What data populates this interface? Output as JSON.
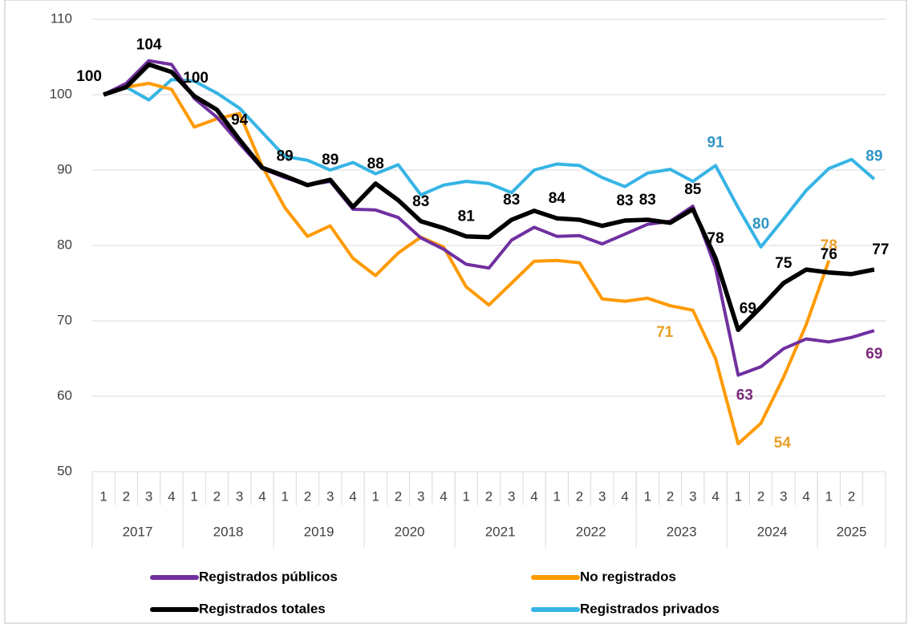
{
  "chart_data": {
    "type": "line",
    "categories": [
      "1",
      "2",
      "3",
      "4",
      "1",
      "2",
      "3",
      "4",
      "1",
      "2",
      "3",
      "4",
      "1",
      "2",
      "3",
      "4",
      "1",
      "2",
      "3",
      "4",
      "1",
      "2",
      "3",
      "4",
      "1",
      "2",
      "3",
      "4",
      "1",
      "2",
      "3",
      "4",
      "1",
      "2",
      null
    ],
    "years": [
      {
        "label": "2017",
        "span": 4
      },
      {
        "label": "2018",
        "span": 4
      },
      {
        "label": "2019",
        "span": 4
      },
      {
        "label": "2020",
        "span": 4
      },
      {
        "label": "2021",
        "span": 4
      },
      {
        "label": "2022",
        "span": 4
      },
      {
        "label": "2023",
        "span": 4
      },
      {
        "label": "2024",
        "span": 4
      },
      {
        "label": "2025",
        "span": 3
      }
    ],
    "ylim": [
      50,
      110
    ],
    "yticks": [
      50,
      60,
      70,
      80,
      90,
      100,
      110
    ],
    "grid": true,
    "series": [
      {
        "name": "Registrados públicos",
        "color": "#7030a0",
        "label_color": "#7b2a7b",
        "values": [
          100,
          101.5,
          104.5,
          104,
          99.5,
          97,
          93.5,
          90.2,
          89,
          88,
          88.5,
          84.8,
          84.7,
          83.7,
          81,
          79.5,
          77.5,
          77,
          80.7,
          82.4,
          81.2,
          81.3,
          80.2,
          81.5,
          82.8,
          83.2,
          85.2,
          77,
          62.8,
          63.9,
          66.3,
          67.6,
          67.2,
          67.8,
          68.7
        ],
        "value_labels": [
          null,
          null,
          null,
          null,
          null,
          null,
          null,
          null,
          null,
          null,
          null,
          null,
          null,
          null,
          null,
          null,
          null,
          null,
          null,
          null,
          null,
          null,
          null,
          null,
          null,
          null,
          null,
          null,
          "63",
          null,
          null,
          null,
          null,
          null,
          "69"
        ]
      },
      {
        "name": "No registrados",
        "color": "#ff9a00",
        "label_color": "#e8a02a",
        "values": [
          100,
          101,
          101.5,
          100.7,
          95.7,
          96.8,
          97.5,
          90.5,
          85,
          81.2,
          82.6,
          78.3,
          76,
          79,
          81.1,
          79.8,
          74.5,
          72.1,
          75,
          77.9,
          78,
          77.7,
          72.9,
          72.6,
          73,
          72,
          71.4,
          65,
          53.7,
          56.4,
          62.5,
          69.5,
          78,
          null,
          null
        ],
        "value_labels": [
          null,
          null,
          null,
          null,
          null,
          null,
          null,
          null,
          null,
          null,
          null,
          null,
          null,
          null,
          null,
          null,
          null,
          null,
          null,
          null,
          null,
          null,
          null,
          null,
          null,
          null,
          "71",
          null,
          "54",
          null,
          null,
          null,
          "78",
          null,
          null
        ]
      },
      {
        "name": "Registrados totales",
        "color": "#000000",
        "label_color": "#000000",
        "values": [
          100,
          101,
          104,
          103,
          99.8,
          98,
          94,
          90.3,
          89.2,
          88,
          88.7,
          85.1,
          88.2,
          86,
          83.2,
          82.3,
          81.2,
          81.1,
          83.4,
          84.6,
          83.6,
          83.4,
          82.6,
          83.3,
          83.4,
          83,
          84.8,
          78.3,
          68.8,
          71.8,
          75,
          76.8,
          76.4,
          76.2,
          76.8
        ],
        "value_labels": [
          "100",
          null,
          "104",
          null,
          "100",
          null,
          "94",
          null,
          "89",
          null,
          "89",
          null,
          "88",
          null,
          "83",
          null,
          "81",
          null,
          "83",
          null,
          "84",
          null,
          null,
          "83",
          "83",
          null,
          "85",
          "78",
          "69",
          null,
          "75",
          null,
          "76",
          null,
          "77"
        ]
      },
      {
        "name": "Registrados privados",
        "color": "#36b4e5",
        "label_color": "#2e95c4",
        "values": [
          100,
          101,
          99.3,
          102,
          101.8,
          100.2,
          98.2,
          95,
          91.8,
          91.3,
          90,
          91,
          89.5,
          90.7,
          86.7,
          88,
          88.5,
          88.2,
          87,
          90,
          90.8,
          90.6,
          89,
          87.8,
          89.6,
          90.1,
          88.5,
          90.6,
          85,
          79.8,
          83.5,
          87.3,
          90.2,
          91.4,
          88.8
        ],
        "value_labels": [
          null,
          null,
          null,
          null,
          null,
          null,
          null,
          null,
          null,
          null,
          null,
          null,
          null,
          null,
          null,
          null,
          null,
          null,
          null,
          null,
          null,
          null,
          null,
          null,
          null,
          null,
          null,
          "91",
          null,
          "80",
          null,
          null,
          null,
          null,
          "89"
        ]
      }
    ]
  }
}
